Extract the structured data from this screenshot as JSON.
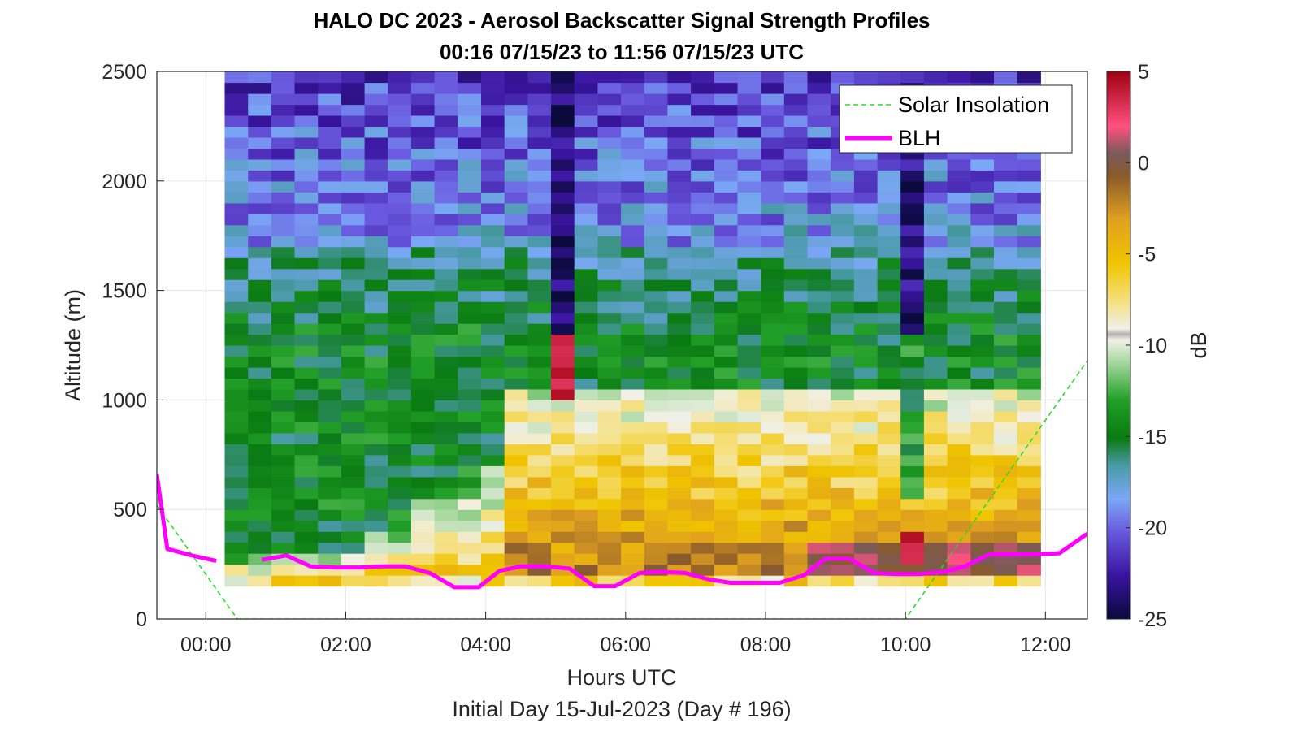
{
  "chart_data": {
    "type": "heatmap",
    "title": "HALO DC 2023 - Aerosol Backscatter Signal Strength Profiles",
    "subtitle": "00:16 07/15/23 to 11:56 07/15/23  UTC",
    "xlabel": "Hours UTC",
    "ylabel": "Altitude (m)",
    "footer": "Initial Day 15-Jul-2023 (Day # 196)",
    "xlim": [
      -0.7,
      12.6
    ],
    "ylim": [
      0,
      2500
    ],
    "x_ticks": [
      0,
      2,
      4,
      6,
      8,
      10,
      12
    ],
    "x_tick_labels": [
      "00:00",
      "02:00",
      "04:00",
      "06:00",
      "08:00",
      "10:00",
      "12:00"
    ],
    "y_ticks": [
      0,
      500,
      1000,
      1500,
      2000,
      2500
    ],
    "y_tick_labels": [
      "0",
      "500",
      "1000",
      "1500",
      "2000",
      "2500"
    ],
    "grid": true,
    "legend_position": "top-right",
    "colorbar": {
      "label": "dB",
      "min": -25,
      "max": 5,
      "ticks": [
        5,
        0,
        -5,
        -10,
        -15,
        -20,
        -25
      ],
      "tick_labels": [
        "5",
        "0",
        "-5",
        "-10",
        "-15",
        "-20",
        "-25"
      ]
    },
    "heatmap": {
      "x_start_hours": 0.27,
      "x_end_hours": 11.93,
      "time_bins": 35,
      "altitude_bottom_m": 150,
      "altitude_top_m": 2500,
      "altitude_bins": 47,
      "value_unit": "dB"
    },
    "series": [
      {
        "name": "Solar Insolation",
        "style": "dashed",
        "color": "#22dd22",
        "x": [
          -0.7,
          0.45,
          10.0,
          12.6
        ],
        "y": [
          520,
          0,
          0,
          1180
        ]
      },
      {
        "name": "BLH",
        "style": "solid",
        "color": "#ff00ff",
        "x": [
          -0.7,
          -0.55,
          -0.2,
          0.15,
          0.5,
          0.8,
          1.15,
          1.5,
          1.85,
          2.2,
          2.5,
          2.85,
          3.2,
          3.55,
          3.9,
          4.2,
          4.5,
          4.85,
          5.2,
          5.55,
          5.85,
          6.2,
          6.5,
          6.85,
          7.2,
          7.5,
          7.85,
          8.2,
          8.55,
          8.85,
          9.2,
          9.55,
          9.85,
          10.2,
          10.55,
          10.85,
          11.2,
          11.5,
          11.85,
          12.2,
          12.6
        ],
        "y": [
          660,
          320,
          290,
          265,
          null,
          270,
          290,
          240,
          235,
          235,
          240,
          240,
          210,
          145,
          145,
          220,
          240,
          240,
          230,
          150,
          150,
          210,
          215,
          210,
          180,
          165,
          165,
          165,
          200,
          275,
          275,
          210,
          205,
          205,
          215,
          240,
          295,
          295,
          295,
          300,
          390
        ]
      }
    ]
  }
}
